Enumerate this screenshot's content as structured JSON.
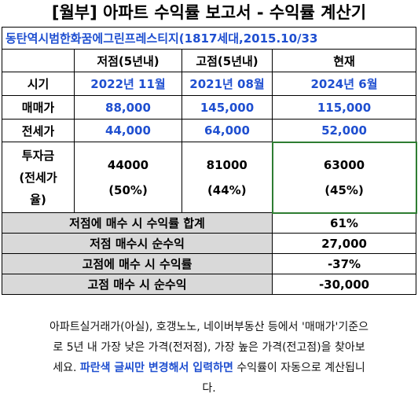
{
  "title": "[월부] 아파트 수익률 보고서 - 수익률 계산기",
  "subtitle": "동탄역시범한화꿈에그린프레스티지(1817세대,2015.10/33",
  "headers": {
    "low": "저점(5년내)",
    "high": "고점(5년내)",
    "now": "현재"
  },
  "rows": {
    "period": {
      "label": "시기",
      "low": "2022년 11월",
      "high": "2021년 08월",
      "now": "2024년 6월"
    },
    "sale": {
      "label": "매매가",
      "low": "88,000",
      "high": "145,000",
      "now": "115,000"
    },
    "jeonse": {
      "label": "전세가",
      "low": "44,000",
      "high": "64,000",
      "now": "52,000"
    },
    "invest": {
      "label_l1": "투자금",
      "label_l2": "(전세가",
      "label_l3": "율)",
      "low_amount": "44000",
      "low_pct": "(50%)",
      "high_amount": "81000",
      "high_pct": "(44%)",
      "now_amount": "63000",
      "now_pct": "(45%)"
    }
  },
  "summary": [
    {
      "label": "저점에 매수 시 수익률 합계",
      "value": "61%"
    },
    {
      "label": "저점 매수시 순수익",
      "value": "27,000"
    },
    {
      "label": "고점에 매수 시 수익률",
      "value": "-37%"
    },
    {
      "label": "고점 매수 시 순수익",
      "value": "-30,000"
    }
  ],
  "footer": {
    "line1": "아파트실거래가(아실), 호갱노노, 네이버부동산 등에서 '매매가'기준으",
    "line2": "로 5년 내 가장 낮은 가격(전저점), 가장 높은 가격(전고점)을 찾아보",
    "line3_pre": "세요. ",
    "line3_emph": "파란색 글씨만 변경해서 입력하면",
    "line3_post": " 수익률이 자동으로 계산됩니",
    "line4": "다."
  }
}
